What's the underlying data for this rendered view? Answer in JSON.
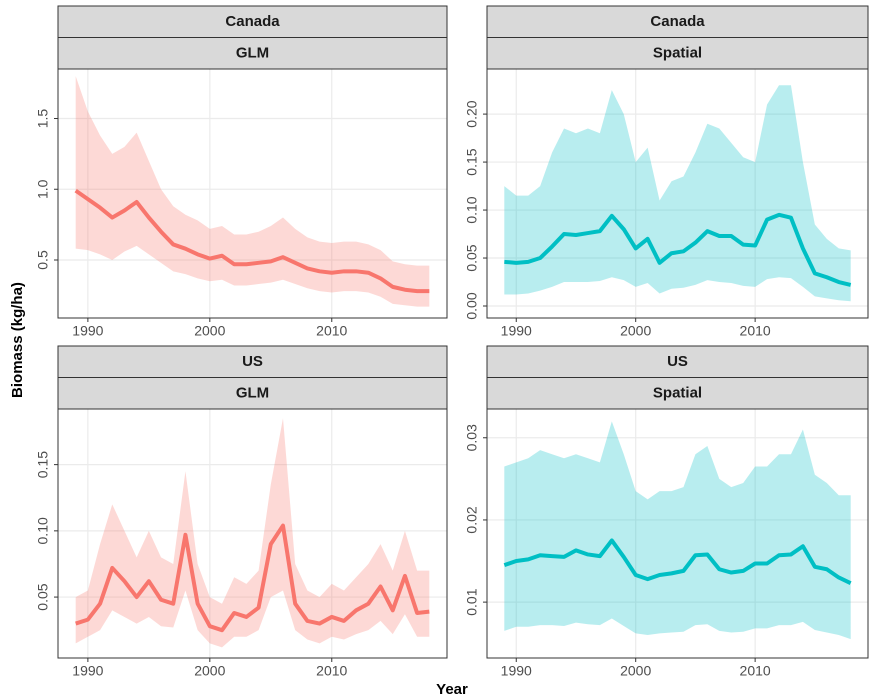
{
  "axis_titles": {
    "x": "Year",
    "y": "Biomass (kg/ha)"
  },
  "chart_data": [
    {
      "type": "line",
      "strips": [
        "Canada",
        "GLM"
      ],
      "x": [
        1989,
        1990,
        1991,
        1992,
        1993,
        1994,
        1995,
        1996,
        1997,
        1998,
        1999,
        2000,
        2001,
        2002,
        2003,
        2004,
        2005,
        2006,
        2007,
        2008,
        2009,
        2010,
        2011,
        2012,
        2013,
        2014,
        2015,
        2016,
        2017,
        2018
      ],
      "xlim": [
        1987.55,
        2019.45
      ],
      "xticks": [
        1990,
        2000,
        2010
      ],
      "ylim": [
        0.09,
        1.85
      ],
      "yticks": [
        0.5,
        {
          "value": 1.0,
          "label": "1.0"
        },
        1.5
      ],
      "grid": true,
      "series": [
        {
          "color": "#f8766d",
          "values": [
            0.99,
            0.93,
            0.87,
            0.8,
            0.85,
            0.91,
            0.8,
            0.7,
            0.61,
            0.58,
            0.54,
            0.51,
            0.53,
            0.47,
            0.47,
            0.48,
            0.49,
            0.52,
            0.48,
            0.44,
            0.42,
            0.41,
            0.42,
            0.42,
            0.41,
            0.37,
            0.31,
            0.29,
            0.28,
            0.28
          ],
          "upper": [
            1.8,
            1.55,
            1.38,
            1.25,
            1.3,
            1.4,
            1.2,
            1.0,
            0.88,
            0.82,
            0.78,
            0.72,
            0.74,
            0.68,
            0.68,
            0.7,
            0.74,
            0.8,
            0.72,
            0.66,
            0.63,
            0.62,
            0.63,
            0.63,
            0.61,
            0.57,
            0.49,
            0.47,
            0.46,
            0.46
          ],
          "lower": [
            0.58,
            0.57,
            0.54,
            0.5,
            0.56,
            0.6,
            0.54,
            0.48,
            0.42,
            0.4,
            0.37,
            0.35,
            0.36,
            0.32,
            0.32,
            0.33,
            0.34,
            0.36,
            0.33,
            0.3,
            0.28,
            0.27,
            0.28,
            0.28,
            0.27,
            0.24,
            0.19,
            0.18,
            0.17,
            0.17
          ]
        }
      ]
    },
    {
      "type": "line",
      "strips": [
        "Canada",
        "Spatial"
      ],
      "x": [
        1989,
        1990,
        1991,
        1992,
        1993,
        1994,
        1995,
        1996,
        1997,
        1998,
        1999,
        2000,
        2001,
        2002,
        2003,
        2004,
        2005,
        2006,
        2007,
        2008,
        2009,
        2010,
        2011,
        2012,
        2013,
        2014,
        2015,
        2016,
        2017,
        2018
      ],
      "xlim": [
        1987.55,
        2019.45
      ],
      "xticks": [
        1990,
        2000,
        2010
      ],
      "ylim": [
        -0.0125,
        0.247
      ],
      "yticks": [
        {
          "value": 0,
          "label": "0.00"
        },
        0.05,
        {
          "value": 0.1,
          "label": "0.10"
        },
        0.15,
        {
          "value": 0.2,
          "label": "0.20"
        }
      ],
      "grid": true,
      "series": [
        {
          "color": "#00bfc4",
          "values": [
            0.046,
            0.045,
            0.046,
            0.05,
            0.062,
            0.075,
            0.074,
            0.076,
            0.078,
            0.094,
            0.08,
            0.06,
            0.07,
            0.045,
            0.055,
            0.057,
            0.066,
            0.078,
            0.073,
            0.073,
            0.064,
            0.063,
            0.09,
            0.095,
            0.092,
            0.06,
            0.034,
            0.03,
            0.025,
            0.022
          ],
          "upper": [
            0.125,
            0.115,
            0.115,
            0.125,
            0.16,
            0.185,
            0.18,
            0.185,
            0.18,
            0.225,
            0.2,
            0.15,
            0.165,
            0.11,
            0.13,
            0.135,
            0.16,
            0.19,
            0.185,
            0.17,
            0.155,
            0.15,
            0.21,
            0.23,
            0.23,
            0.15,
            0.085,
            0.07,
            0.06,
            0.058
          ],
          "lower": [
            0.012,
            0.012,
            0.013,
            0.016,
            0.02,
            0.025,
            0.025,
            0.025,
            0.026,
            0.03,
            0.027,
            0.02,
            0.024,
            0.013,
            0.018,
            0.019,
            0.022,
            0.027,
            0.025,
            0.024,
            0.021,
            0.02,
            0.028,
            0.03,
            0.029,
            0.02,
            0.01,
            0.008,
            0.006,
            0.005
          ]
        }
      ]
    },
    {
      "type": "line",
      "strips": [
        "US",
        "GLM"
      ],
      "x": [
        1989,
        1990,
        1991,
        1992,
        1993,
        1994,
        1995,
        1996,
        1997,
        1998,
        1999,
        2000,
        2001,
        2002,
        2003,
        2004,
        2005,
        2006,
        2007,
        2008,
        2009,
        2010,
        2011,
        2012,
        2013,
        2014,
        2015,
        2016,
        2017,
        2018
      ],
      "xlim": [
        1987.55,
        2019.45
      ],
      "xticks": [
        1990,
        2000,
        2010
      ],
      "ylim": [
        0.004,
        0.192
      ],
      "yticks": [
        0.05,
        {
          "value": 0.1,
          "label": "0.10"
        },
        0.15
      ],
      "grid": true,
      "series": [
        {
          "color": "#f8766d",
          "values": [
            0.03,
            0.033,
            0.045,
            0.072,
            0.062,
            0.05,
            0.062,
            0.048,
            0.045,
            0.097,
            0.045,
            0.028,
            0.025,
            0.038,
            0.035,
            0.042,
            0.09,
            0.104,
            0.045,
            0.032,
            0.03,
            0.035,
            0.032,
            0.04,
            0.045,
            0.058,
            0.04,
            0.066,
            0.038,
            0.039
          ],
          "upper": [
            0.05,
            0.055,
            0.09,
            0.12,
            0.1,
            0.08,
            0.1,
            0.08,
            0.075,
            0.145,
            0.075,
            0.05,
            0.045,
            0.065,
            0.06,
            0.07,
            0.135,
            0.185,
            0.075,
            0.055,
            0.05,
            0.06,
            0.055,
            0.065,
            0.075,
            0.09,
            0.07,
            0.1,
            0.07,
            0.07
          ],
          "lower": [
            0.015,
            0.02,
            0.025,
            0.04,
            0.035,
            0.03,
            0.035,
            0.028,
            0.027,
            0.055,
            0.025,
            0.015,
            0.012,
            0.02,
            0.02,
            0.025,
            0.05,
            0.055,
            0.025,
            0.018,
            0.015,
            0.02,
            0.018,
            0.022,
            0.025,
            0.032,
            0.022,
            0.037,
            0.02,
            0.02
          ]
        }
      ]
    },
    {
      "type": "line",
      "strips": [
        "US",
        "Spatial"
      ],
      "x": [
        1989,
        1990,
        1991,
        1992,
        1993,
        1994,
        1995,
        1996,
        1997,
        1998,
        1999,
        2000,
        2001,
        2002,
        2003,
        2004,
        2005,
        2006,
        2007,
        2008,
        2009,
        2010,
        2011,
        2012,
        2013,
        2014,
        2015,
        2016,
        2017,
        2018
      ],
      "xlim": [
        1987.55,
        2019.45
      ],
      "xticks": [
        1990,
        2000,
        2010
      ],
      "ylim": [
        0.0032,
        0.0335
      ],
      "yticks": [
        0.01,
        0.02,
        0.03
      ],
      "grid": true,
      "series": [
        {
          "color": "#00bfc4",
          "values": [
            0.0145,
            0.015,
            0.0152,
            0.0157,
            0.0156,
            0.0155,
            0.0163,
            0.0158,
            0.0156,
            0.0175,
            0.0155,
            0.0133,
            0.0128,
            0.0133,
            0.0135,
            0.0138,
            0.0157,
            0.0158,
            0.014,
            0.0136,
            0.0138,
            0.0147,
            0.0147,
            0.0157,
            0.0158,
            0.0168,
            0.0143,
            0.014,
            0.013,
            0.0123
          ],
          "upper": [
            0.0265,
            0.027,
            0.0275,
            0.0285,
            0.028,
            0.0275,
            0.028,
            0.0275,
            0.027,
            0.032,
            0.028,
            0.0235,
            0.0225,
            0.0235,
            0.0235,
            0.024,
            0.028,
            0.029,
            0.025,
            0.024,
            0.0245,
            0.0265,
            0.0265,
            0.028,
            0.028,
            0.031,
            0.0255,
            0.0245,
            0.023,
            0.023
          ],
          "lower": [
            0.0065,
            0.007,
            0.007,
            0.0072,
            0.0072,
            0.0071,
            0.0075,
            0.0073,
            0.0072,
            0.008,
            0.0071,
            0.0062,
            0.006,
            0.0062,
            0.0063,
            0.0064,
            0.0072,
            0.0073,
            0.0065,
            0.0063,
            0.0064,
            0.0068,
            0.0068,
            0.0072,
            0.0072,
            0.0076,
            0.0066,
            0.0063,
            0.006,
            0.0055
          ]
        }
      ]
    }
  ]
}
